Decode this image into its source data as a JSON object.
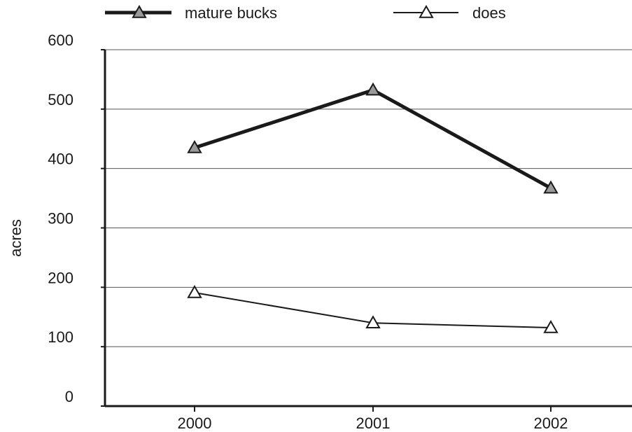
{
  "chart_data": {
    "type": "line",
    "xlabel": "",
    "ylabel": "acres",
    "categories": [
      "2000",
      "2001",
      "2002"
    ],
    "ylim": [
      0,
      600
    ],
    "yticks": [
      0,
      100,
      200,
      300,
      400,
      500,
      600
    ],
    "grid": true,
    "legend_position": "top",
    "series": [
      {
        "name": "mature bucks",
        "values": [
          435,
          532,
          367
        ],
        "color": "#1a1a1a",
        "marker": "triangle",
        "marker_fill": "#9a9a9a",
        "line_weight": "heavy"
      },
      {
        "name": "does",
        "values": [
          191,
          140,
          132
        ],
        "color": "#1a1a1a",
        "marker": "triangle",
        "marker_fill": "#ffffff",
        "line_weight": "thin"
      }
    ]
  }
}
